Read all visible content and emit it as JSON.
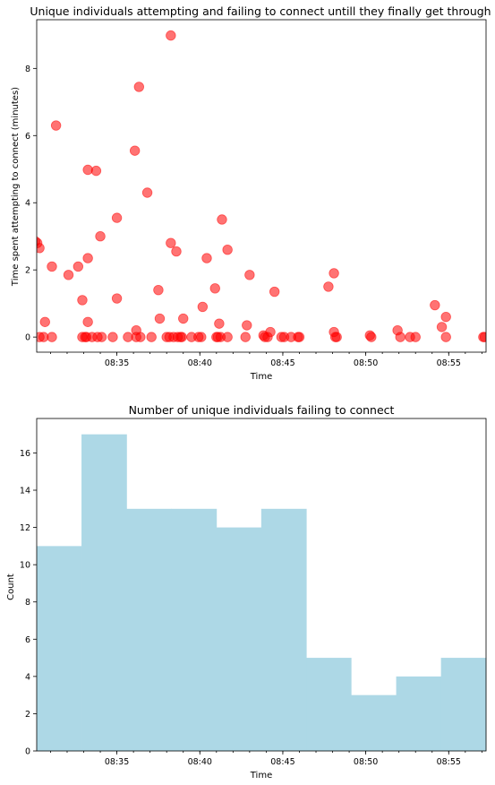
{
  "chart_data": [
    {
      "type": "scatter",
      "title": "Unique individuals attempting and failing to connect untill they finally get through",
      "xlabel": "Time",
      "ylabel": "Time spent attempting to connect (minutes)",
      "x_tick_labels": [
        "08:35",
        "08:40",
        "08:45",
        "08:50",
        "08:55"
      ],
      "y_tick_labels": [
        "0",
        "2",
        "4",
        "6",
        "8"
      ],
      "xlim": [
        "08:30:10",
        "08:57:15"
      ],
      "ylim": [
        -0.45,
        9.45
      ],
      "marker_color": "#ff0000",
      "marker_opacity": 0.55,
      "points": [
        {
          "x": "08:30:05",
          "y": 2.85
        },
        {
          "x": "08:30:12",
          "y": 2.8
        },
        {
          "x": "08:30:20",
          "y": 2.65
        },
        {
          "x": "08:30:20",
          "y": 0
        },
        {
          "x": "08:30:35",
          "y": 0
        },
        {
          "x": "08:30:40",
          "y": 0.45
        },
        {
          "x": "08:31:05",
          "y": 2.1
        },
        {
          "x": "08:31:05",
          "y": 0
        },
        {
          "x": "08:31:20",
          "y": 6.3
        },
        {
          "x": "08:32:05",
          "y": 1.85
        },
        {
          "x": "08:32:40",
          "y": 2.1
        },
        {
          "x": "08:32:55",
          "y": 1.1
        },
        {
          "x": "08:32:55",
          "y": 0
        },
        {
          "x": "08:33:05",
          "y": 0
        },
        {
          "x": "08:33:10",
          "y": 0
        },
        {
          "x": "08:33:15",
          "y": 2.35
        },
        {
          "x": "08:33:15",
          "y": 0.45
        },
        {
          "x": "08:33:15",
          "y": 4.98
        },
        {
          "x": "08:33:30",
          "y": 0
        },
        {
          "x": "08:33:45",
          "y": 4.95
        },
        {
          "x": "08:33:50",
          "y": 0
        },
        {
          "x": "08:34:00",
          "y": 3.0
        },
        {
          "x": "08:34:05",
          "y": 0
        },
        {
          "x": "08:34:45",
          "y": 0
        },
        {
          "x": "08:35:00",
          "y": 3.55
        },
        {
          "x": "08:35:00",
          "y": 1.15
        },
        {
          "x": "08:35:40",
          "y": 0
        },
        {
          "x": "08:36:05",
          "y": 5.55
        },
        {
          "x": "08:36:10",
          "y": 0.2
        },
        {
          "x": "08:36:10",
          "y": 0
        },
        {
          "x": "08:36:25",
          "y": 0
        },
        {
          "x": "08:36:20",
          "y": 7.45
        },
        {
          "x": "08:36:50",
          "y": 4.3
        },
        {
          "x": "08:37:05",
          "y": 0
        },
        {
          "x": "08:37:30",
          "y": 1.4
        },
        {
          "x": "08:37:35",
          "y": 0.55
        },
        {
          "x": "08:38:00",
          "y": 0
        },
        {
          "x": "08:38:10",
          "y": 0
        },
        {
          "x": "08:38:15",
          "y": 8.98
        },
        {
          "x": "08:38:15",
          "y": 2.8
        },
        {
          "x": "08:38:25",
          "y": 0
        },
        {
          "x": "08:38:35",
          "y": 2.55
        },
        {
          "x": "08:38:40",
          "y": 0
        },
        {
          "x": "08:38:50",
          "y": 0
        },
        {
          "x": "08:38:55",
          "y": 0
        },
        {
          "x": "08:39:00",
          "y": 0.55
        },
        {
          "x": "08:39:30",
          "y": 0
        },
        {
          "x": "08:39:55",
          "y": 0
        },
        {
          "x": "08:40:10",
          "y": 0.9
        },
        {
          "x": "08:40:05",
          "y": 0
        },
        {
          "x": "08:40:25",
          "y": 2.35
        },
        {
          "x": "08:40:55",
          "y": 1.45
        },
        {
          "x": "08:41:00",
          "y": 0
        },
        {
          "x": "08:41:05",
          "y": 0
        },
        {
          "x": "08:41:10",
          "y": 0.4
        },
        {
          "x": "08:41:15",
          "y": 0
        },
        {
          "x": "08:41:20",
          "y": 3.5
        },
        {
          "x": "08:41:40",
          "y": 2.6
        },
        {
          "x": "08:41:40",
          "y": 0
        },
        {
          "x": "08:42:45",
          "y": 0
        },
        {
          "x": "08:42:50",
          "y": 0.35
        },
        {
          "x": "08:43:00",
          "y": 1.85
        },
        {
          "x": "08:43:50",
          "y": 0.05
        },
        {
          "x": "08:43:55",
          "y": 0
        },
        {
          "x": "08:44:05",
          "y": 0
        },
        {
          "x": "08:44:15",
          "y": 0.15
        },
        {
          "x": "08:44:30",
          "y": 1.35
        },
        {
          "x": "08:44:55",
          "y": 0
        },
        {
          "x": "08:45:05",
          "y": 0
        },
        {
          "x": "08:45:30",
          "y": 0
        },
        {
          "x": "08:45:55",
          "y": 0
        },
        {
          "x": "08:46:00",
          "y": 0
        },
        {
          "x": "08:47:45",
          "y": 1.5
        },
        {
          "x": "08:48:05",
          "y": 1.9
        },
        {
          "x": "08:48:05",
          "y": 0.15
        },
        {
          "x": "08:48:10",
          "y": 0
        },
        {
          "x": "08:48:15",
          "y": 0
        },
        {
          "x": "08:50:15",
          "y": 0.05
        },
        {
          "x": "08:50:20",
          "y": 0
        },
        {
          "x": "08:51:55",
          "y": 0.2
        },
        {
          "x": "08:52:05",
          "y": 0
        },
        {
          "x": "08:52:40",
          "y": 0
        },
        {
          "x": "08:53:00",
          "y": 0
        },
        {
          "x": "08:54:10",
          "y": 0.95
        },
        {
          "x": "08:54:35",
          "y": 0.3
        },
        {
          "x": "08:54:50",
          "y": 0.6
        },
        {
          "x": "08:54:50",
          "y": 0
        },
        {
          "x": "08:57:05",
          "y": 0
        },
        {
          "x": "08:57:10",
          "y": 0
        }
      ]
    },
    {
      "type": "bar",
      "title": "Number of unique individuals failing to connect",
      "xlabel": "Time",
      "ylabel": "Count",
      "x_tick_labels": [
        "08:35",
        "08:40",
        "08:45",
        "08:50",
        "08:55"
      ],
      "y_tick_labels": [
        "0",
        "2",
        "4",
        "6",
        "8",
        "10",
        "12",
        "14",
        "16"
      ],
      "xlim": [
        "08:30:10",
        "08:57:15"
      ],
      "ylim": [
        0,
        17.85
      ],
      "bar_color": "#add8e6",
      "bins": [
        {
          "start": "08:30:10",
          "end": "08:32:52",
          "count": 11
        },
        {
          "start": "08:32:52",
          "end": "08:35:35",
          "count": 17
        },
        {
          "start": "08:35:35",
          "end": "08:38:17",
          "count": 13
        },
        {
          "start": "08:38:17",
          "end": "08:41:00",
          "count": 13
        },
        {
          "start": "08:41:00",
          "end": "08:43:42",
          "count": 12
        },
        {
          "start": "08:43:42",
          "end": "08:46:25",
          "count": 13
        },
        {
          "start": "08:46:25",
          "end": "08:49:07",
          "count": 5
        },
        {
          "start": "08:49:07",
          "end": "08:51:50",
          "count": 3
        },
        {
          "start": "08:51:50",
          "end": "08:54:32",
          "count": 4
        },
        {
          "start": "08:54:32",
          "end": "08:57:15",
          "count": 5
        }
      ]
    }
  ]
}
